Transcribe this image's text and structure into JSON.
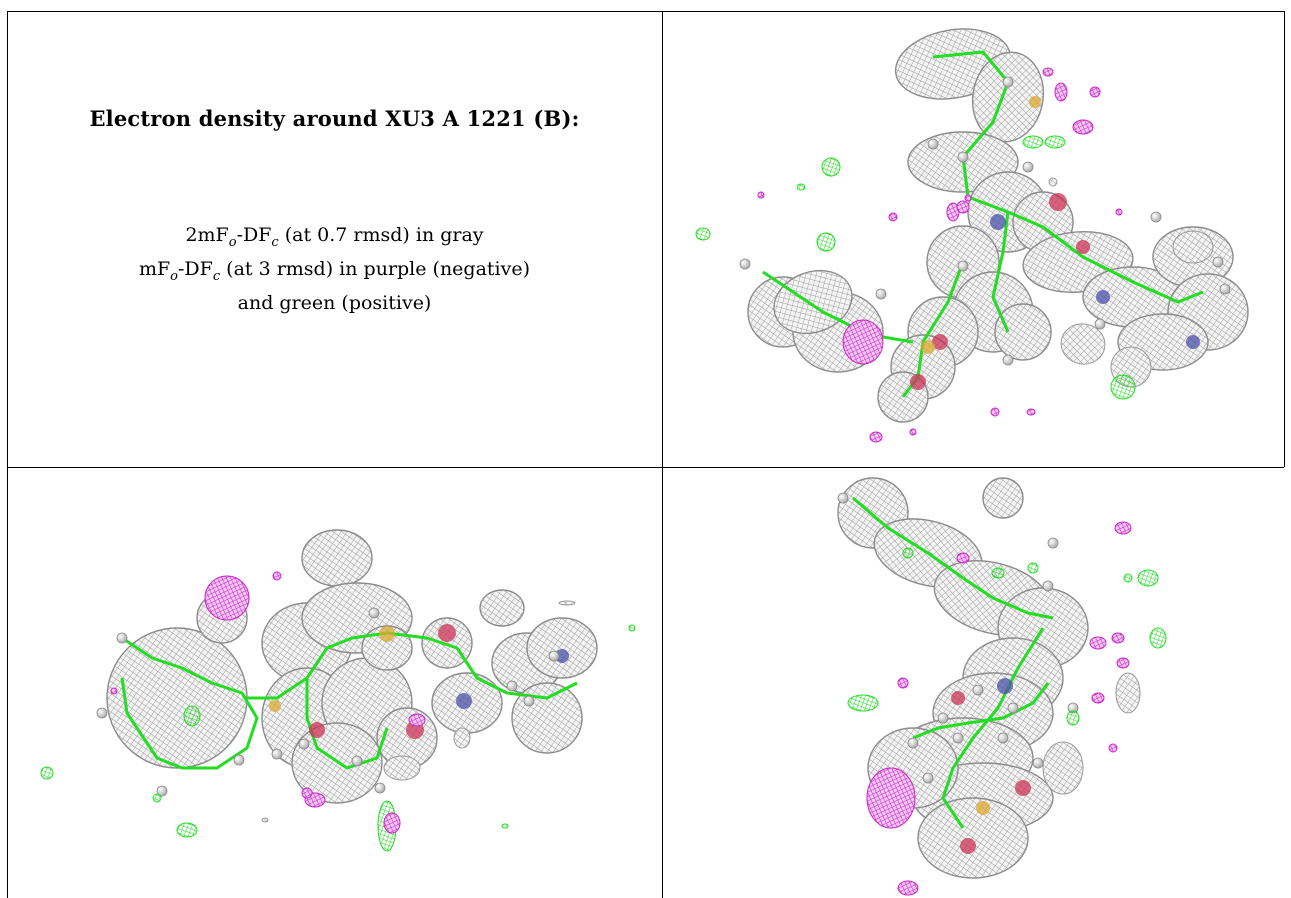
{
  "heading": "Electron density around XU3 A 1221 (B):",
  "legend": {
    "line1": {
      "pre": "2mF",
      "sub1": "o",
      "mid": "-DF",
      "sub2": "c",
      "post": " (at 0.7 rmsd) in gray"
    },
    "line2": {
      "pre": "mF",
      "sub1": "o",
      "mid": "-DF",
      "sub2": "c",
      "post": " (at 3 rmsd) in purple (negative)"
    },
    "line3": "and green (positive)"
  },
  "colors": {
    "mesh_gray": "#9a9a9a",
    "positive_green": "#22dd22",
    "negative_purple": "#cc22cc",
    "nitrogen_blue": "#4a50a8",
    "oxygen_red": "#cc3355",
    "sulfur_yellow": "#d9a830",
    "hydrogen_white": "#e8e8e8"
  },
  "views": [
    {
      "name": "view-1"
    },
    {
      "name": "view-2"
    },
    {
      "name": "view-3"
    }
  ]
}
